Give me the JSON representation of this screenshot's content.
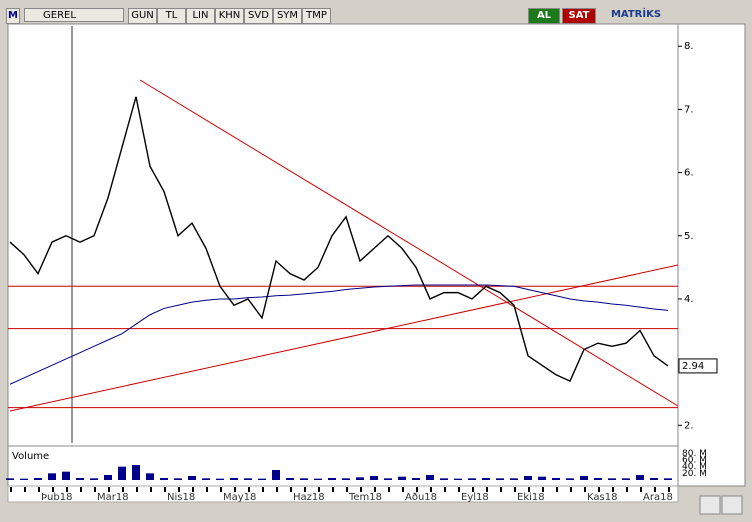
{
  "toolbar": {
    "logo": "M",
    "symbol": "GEREL",
    "buttons": [
      "GUN",
      "TL",
      "LIN",
      "KHN",
      "SVD",
      "SYM",
      "TMP"
    ],
    "buy": "AL",
    "sell": "SAT",
    "brand": "MATRİKS"
  },
  "chart_data": {
    "type": "line",
    "categories": [
      null,
      null,
      "Þub18",
      null,
      null,
      null,
      "Mar18",
      null,
      null,
      null,
      null,
      "Nis18",
      null,
      null,
      null,
      "May18",
      null,
      null,
      null,
      null,
      "Haz18",
      null,
      null,
      null,
      "Tem18",
      null,
      null,
      null,
      "Aðu18",
      null,
      null,
      null,
      "Eyl18",
      null,
      null,
      null,
      "Eki18",
      null,
      null,
      null,
      null,
      "Kas18",
      null,
      null,
      null,
      "Ara18",
      null,
      null
    ],
    "series": [
      {
        "color": "#000000",
        "values": [
          4.9,
          4.7,
          4.4,
          4.9,
          5.0,
          4.9,
          5.0,
          5.6,
          6.4,
          7.2,
          6.1,
          5.7,
          5.0,
          5.2,
          4.8,
          4.2,
          3.9,
          4.0,
          3.7,
          4.6,
          4.4,
          4.3,
          4.5,
          5.0,
          5.3,
          4.6,
          4.8,
          5.0,
          4.8,
          4.5,
          4.0,
          4.1,
          4.1,
          4.0,
          4.2,
          4.1,
          3.9,
          3.1,
          2.95,
          2.8,
          2.7,
          3.2,
          3.3,
          3.25,
          3.3,
          3.5,
          3.1,
          2.94
        ]
      },
      {
        "color": "#00008b",
        "values": [
          2.65,
          2.75,
          2.85,
          2.95,
          3.05,
          3.15,
          3.25,
          3.35,
          3.45,
          3.6,
          3.75,
          3.85,
          3.9,
          3.95,
          3.98,
          4.0,
          4.0,
          4.02,
          4.03,
          4.05,
          4.06,
          4.08,
          4.1,
          4.12,
          4.15,
          4.17,
          4.19,
          4.2,
          4.21,
          4.22,
          4.22,
          4.22,
          4.22,
          4.22,
          4.22,
          4.21,
          4.2,
          4.15,
          4.1,
          4.05,
          4.0,
          3.97,
          3.95,
          3.92,
          3.9,
          3.87,
          3.84,
          3.82
        ]
      }
    ],
    "levels": [
      4.2,
      3.53,
      2.28
    ],
    "level_color": "#cc0000",
    "ylim": [
      1.72,
      8.32
    ],
    "yticks": [
      {
        "value": 8,
        "label": "8."
      },
      {
        "value": 7,
        "label": "7."
      },
      {
        "value": 6,
        "label": "6."
      },
      {
        "value": 5,
        "label": "5."
      },
      {
        "value": 4,
        "label": "4."
      },
      {
        "value": 2,
        "label": "2."
      }
    ],
    "volume": {
      "label": "Volume",
      "color": "#00008b",
      "ylim": [
        0,
        90
      ],
      "yticks": [
        {
          "value": 80,
          "label": "80. M"
        },
        {
          "value": 60,
          "label": "60. M"
        },
        {
          "value": 40,
          "label": "40. M"
        },
        {
          "value": 20,
          "label": "20. M"
        }
      ],
      "values": [
        5,
        4,
        6,
        20,
        25,
        6,
        5,
        15,
        40,
        45,
        20,
        6,
        5,
        12,
        5,
        4,
        6,
        5,
        4,
        30,
        6,
        5,
        4,
        6,
        5,
        8,
        12,
        5,
        10,
        6,
        15,
        5,
        4,
        5,
        6,
        5,
        5,
        12,
        10,
        6,
        5,
        12,
        6,
        5,
        5,
        15,
        6,
        5
      ]
    }
  }
}
